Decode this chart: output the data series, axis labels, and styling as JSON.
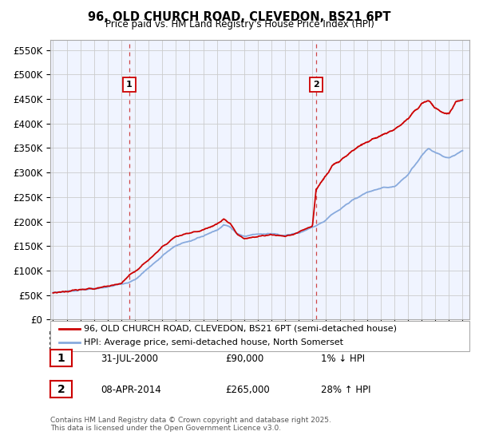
{
  "title": "96, OLD CHURCH ROAD, CLEVEDON, BS21 6PT",
  "subtitle": "Price paid vs. HM Land Registry's House Price Index (HPI)",
  "ylabel_ticks": [
    "£0",
    "£50K",
    "£100K",
    "£150K",
    "£200K",
    "£250K",
    "£300K",
    "£350K",
    "£400K",
    "£450K",
    "£500K",
    "£550K"
  ],
  "ytick_values": [
    0,
    50000,
    100000,
    150000,
    200000,
    250000,
    300000,
    350000,
    400000,
    450000,
    500000,
    550000
  ],
  "ylim": [
    0,
    570000
  ],
  "xlim_start": 1994.8,
  "xlim_end": 2025.5,
  "sale1_x": 2000.58,
  "sale1_y": 90000,
  "sale1_label": "1",
  "sale2_x": 2014.27,
  "sale2_y": 265000,
  "sale2_label": "2",
  "line_color_property": "#cc0000",
  "line_color_hpi": "#88aadd",
  "dashed_line_color": "#cc3333",
  "legend_label_property": "96, OLD CHURCH ROAD, CLEVEDON, BS21 6PT (semi-detached house)",
  "legend_label_hpi": "HPI: Average price, semi-detached house, North Somerset",
  "table_row1": [
    "1",
    "31-JUL-2000",
    "£90,000",
    "1% ↓ HPI"
  ],
  "table_row2": [
    "2",
    "08-APR-2014",
    "£265,000",
    "28% ↑ HPI"
  ],
  "footer": "Contains HM Land Registry data © Crown copyright and database right 2025.\nThis data is licensed under the Open Government Licence v3.0.",
  "background_color": "#ffffff",
  "plot_bg_color": "#f0f4ff",
  "grid_color": "#cccccc",
  "hpi_segment_points": [
    [
      1995.0,
      55000
    ],
    [
      1996.0,
      57000
    ],
    [
      1997.0,
      60000
    ],
    [
      1998.0,
      63000
    ],
    [
      1999.0,
      67000
    ],
    [
      2000.0,
      72000
    ],
    [
      2000.58,
      75000
    ],
    [
      2001.0,
      82000
    ],
    [
      2002.0,
      105000
    ],
    [
      2003.0,
      130000
    ],
    [
      2004.0,
      152000
    ],
    [
      2005.0,
      160000
    ],
    [
      2006.0,
      170000
    ],
    [
      2007.0,
      182000
    ],
    [
      2007.5,
      193000
    ],
    [
      2008.0,
      188000
    ],
    [
      2008.5,
      175000
    ],
    [
      2009.0,
      170000
    ],
    [
      2010.0,
      175000
    ],
    [
      2011.0,
      175000
    ],
    [
      2012.0,
      172000
    ],
    [
      2013.0,
      177000
    ],
    [
      2013.5,
      182000
    ],
    [
      2014.0,
      188000
    ],
    [
      2014.27,
      192000
    ],
    [
      2015.0,
      205000
    ],
    [
      2016.0,
      225000
    ],
    [
      2017.0,
      245000
    ],
    [
      2018.0,
      258000
    ],
    [
      2019.0,
      268000
    ],
    [
      2020.0,
      272000
    ],
    [
      2021.0,
      295000
    ],
    [
      2022.0,
      335000
    ],
    [
      2022.5,
      350000
    ],
    [
      2023.0,
      340000
    ],
    [
      2024.0,
      330000
    ],
    [
      2025.0,
      345000
    ]
  ],
  "prop_segment_points_before": [
    [
      1995.0,
      55000
    ],
    [
      1996.0,
      57500
    ],
    [
      1997.0,
      61000
    ],
    [
      1998.0,
      64000
    ],
    [
      1999.0,
      68000
    ],
    [
      2000.0,
      73000
    ],
    [
      2000.58,
      90000
    ],
    [
      2001.0,
      98000
    ],
    [
      2002.0,
      122000
    ],
    [
      2003.0,
      148000
    ],
    [
      2004.0,
      170000
    ],
    [
      2005.0,
      175000
    ],
    [
      2006.0,
      183000
    ],
    [
      2007.0,
      195000
    ],
    [
      2007.5,
      205000
    ],
    [
      2008.0,
      195000
    ],
    [
      2008.5,
      175000
    ],
    [
      2009.0,
      165000
    ],
    [
      2010.0,
      170000
    ],
    [
      2011.0,
      173000
    ],
    [
      2012.0,
      170000
    ],
    [
      2013.0,
      178000
    ],
    [
      2013.5,
      185000
    ],
    [
      2014.0,
      190000
    ],
    [
      2014.27,
      265000
    ]
  ],
  "prop_segment_points_after": [
    [
      2014.27,
      265000
    ],
    [
      2015.0,
      295000
    ],
    [
      2015.5,
      315000
    ],
    [
      2016.0,
      325000
    ],
    [
      2017.0,
      345000
    ],
    [
      2017.5,
      355000
    ],
    [
      2018.0,
      362000
    ],
    [
      2019.0,
      375000
    ],
    [
      2020.0,
      388000
    ],
    [
      2021.0,
      410000
    ],
    [
      2022.0,
      440000
    ],
    [
      2022.5,
      448000
    ],
    [
      2023.0,
      430000
    ],
    [
      2024.0,
      420000
    ],
    [
      2024.5,
      445000
    ],
    [
      2025.0,
      450000
    ]
  ]
}
